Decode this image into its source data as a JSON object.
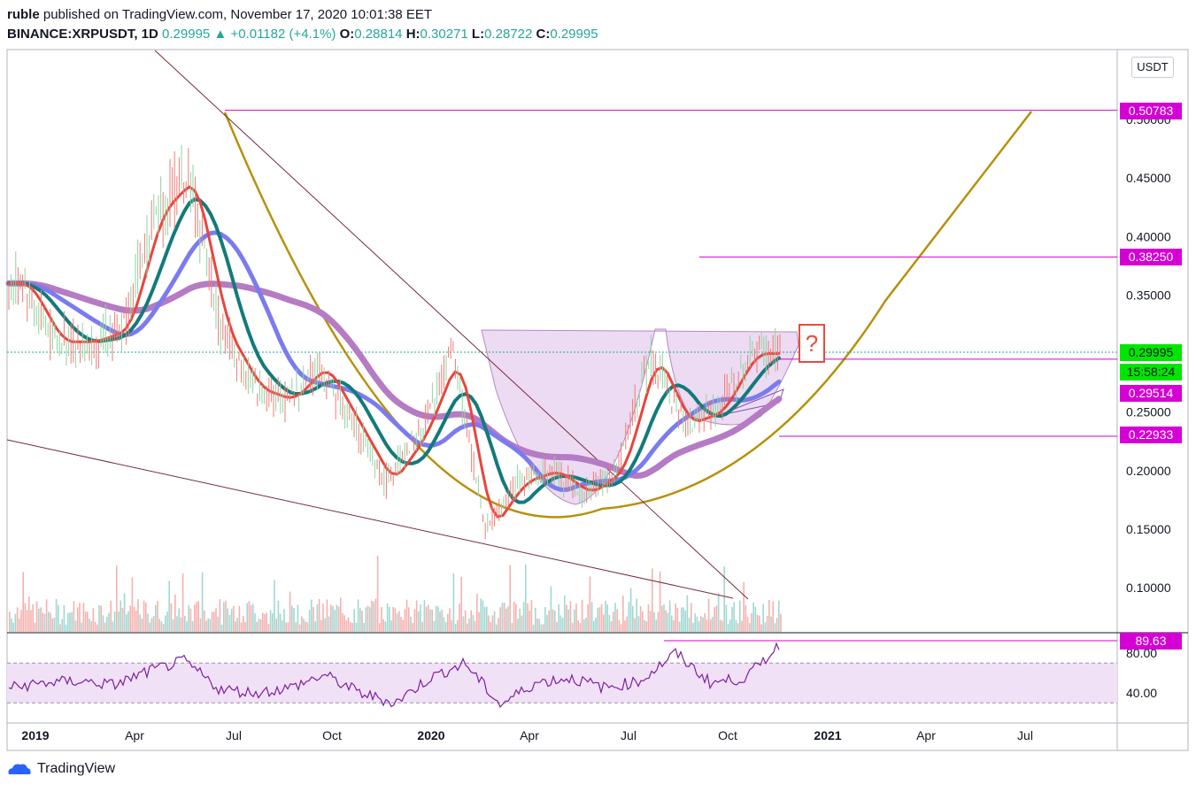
{
  "header": {
    "line1_user": "ruble",
    "line1_rest": "published on TradingView.com, November 17, 2020 10:01:38 EET",
    "symbol": "BINANCE:XRPUSDT, 1D",
    "last": "0.29995",
    "change": "▲ +0.01182 (+4.1%)",
    "o_label": "O:",
    "o_val": "0.28814",
    "h_label": "H:",
    "h_val": "0.30271",
    "l_label": "L:",
    "l_val": "0.28722",
    "c_label": "C:",
    "c_val": "0.29995"
  },
  "currency_button": "USDT",
  "annotation": "?",
  "footer": {
    "brand": "TradingView"
  },
  "colors": {
    "up": "#26a69a",
    "down": "#ef5350",
    "magenta": "#d500d5",
    "green_label": "#00e600",
    "ma_teal": "#137a7a",
    "ma_red": "#e8453c",
    "ma_blue": "#7b7bf0",
    "ma_purple": "#b57bc4",
    "gold": "#b8900a",
    "rsi": "#7b1fa2",
    "trendline": "#7a2a3a",
    "cup_fill": "#e6cfee"
  },
  "chart_data": {
    "type": "candlestick",
    "symbol": "BINANCE:XRPUSDT",
    "interval": "1D",
    "y_axis": {
      "ticks": [
        "0.50000",
        "0.45000",
        "0.40000",
        "0.35000",
        "0.25000",
        "0.20000",
        "0.15000",
        "0.10000"
      ],
      "scale": "linear",
      "range": [
        0.05,
        0.55
      ]
    },
    "x_axis": {
      "ticks": [
        "2019",
        "Apr",
        "Jul",
        "Oct",
        "2020",
        "Apr",
        "Jul",
        "Oct",
        "2021",
        "Apr",
        "Jul"
      ]
    },
    "price_labels": [
      {
        "value": "0.50783",
        "color": "magenta"
      },
      {
        "value": "0.38250",
        "color": "magenta"
      },
      {
        "value": "0.29995",
        "color": "green"
      },
      {
        "value": "15:58:24",
        "color": "green"
      },
      {
        "value": "0.29514",
        "color": "magenta"
      },
      {
        "value": "0.22933",
        "color": "magenta"
      }
    ],
    "horizontal_levels": [
      0.50783,
      0.3825,
      0.29514,
      0.22933
    ],
    "price_series_approx": [
      [
        "2019-01",
        0.36
      ],
      [
        "2019-02",
        0.31
      ],
      [
        "2019-03",
        0.31
      ],
      [
        "2019-04",
        0.32
      ],
      [
        "2019-05",
        0.42
      ],
      [
        "2019-06",
        0.45
      ],
      [
        "2019-07",
        0.32
      ],
      [
        "2019-08",
        0.27
      ],
      [
        "2019-09",
        0.26
      ],
      [
        "2019-10",
        0.29
      ],
      [
        "2019-11",
        0.24
      ],
      [
        "2019-12",
        0.19
      ],
      [
        "2020-01",
        0.23
      ],
      [
        "2020-02",
        0.3
      ],
      [
        "2020-03",
        0.15
      ],
      [
        "2020-04",
        0.19
      ],
      [
        "2020-05",
        0.2
      ],
      [
        "2020-06",
        0.18
      ],
      [
        "2020-07",
        0.2
      ],
      [
        "2020-08",
        0.3
      ],
      [
        "2020-09",
        0.24
      ],
      [
        "2020-10",
        0.25
      ],
      [
        "2020-11",
        0.29995
      ]
    ],
    "rsi": {
      "ticks": [
        "80.00",
        "40.00"
      ],
      "band": [
        70,
        30
      ],
      "last_label": "89.63",
      "values_approx": [
        45,
        50,
        52,
        48,
        62,
        72,
        44,
        40,
        45,
        58,
        40,
        30,
        55,
        70,
        28,
        50,
        55,
        45,
        52,
        80,
        50,
        55,
        89.63
      ]
    }
  }
}
